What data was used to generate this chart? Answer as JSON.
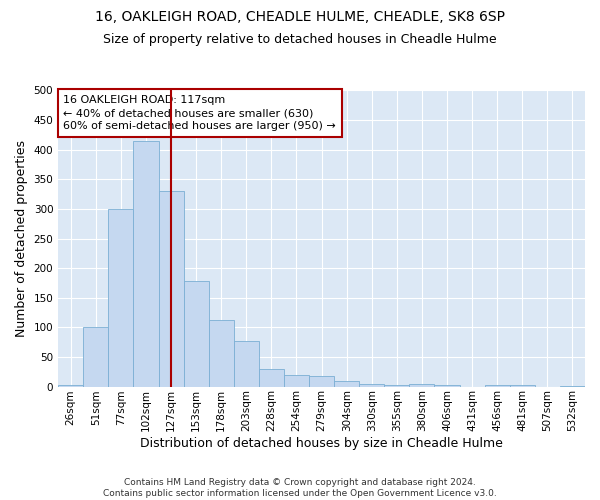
{
  "title1": "16, OAKLEIGH ROAD, CHEADLE HULME, CHEADLE, SK8 6SP",
  "title2": "Size of property relative to detached houses in Cheadle Hulme",
  "xlabel": "Distribution of detached houses by size in Cheadle Hulme",
  "ylabel": "Number of detached properties",
  "bar_labels": [
    "26sqm",
    "51sqm",
    "77sqm",
    "102sqm",
    "127sqm",
    "153sqm",
    "178sqm",
    "203sqm",
    "228sqm",
    "254sqm",
    "279sqm",
    "304sqm",
    "330sqm",
    "355sqm",
    "380sqm",
    "406sqm",
    "431sqm",
    "456sqm",
    "481sqm",
    "507sqm",
    "532sqm"
  ],
  "bar_values": [
    3,
    100,
    300,
    415,
    330,
    178,
    112,
    77,
    30,
    20,
    18,
    10,
    5,
    3,
    5,
    2,
    0,
    3,
    2,
    0,
    1
  ],
  "bar_color": "#c5d8f0",
  "bar_edge_color": "#7bafd4",
  "vline_index": 4,
  "vline_color": "#aa0000",
  "annotation_line0": "16 OAKLEIGH ROAD: 117sqm",
  "annotation_line1": "← 40% of detached houses are smaller (630)",
  "annotation_line2": "60% of semi-detached houses are larger (950) →",
  "annotation_box_facecolor": "#ffffff",
  "annotation_box_edgecolor": "#aa0000",
  "footer1": "Contains HM Land Registry data © Crown copyright and database right 2024.",
  "footer2": "Contains public sector information licensed under the Open Government Licence v3.0.",
  "ylim": [
    0,
    500
  ],
  "yticks": [
    0,
    50,
    100,
    150,
    200,
    250,
    300,
    350,
    400,
    450,
    500
  ],
  "bg_color": "#dce8f5",
  "title1_fontsize": 10,
  "title2_fontsize": 9,
  "ylabel_fontsize": 9,
  "xlabel_fontsize": 9,
  "tick_fontsize": 7.5,
  "annot_fontsize": 8,
  "footer_fontsize": 6.5
}
